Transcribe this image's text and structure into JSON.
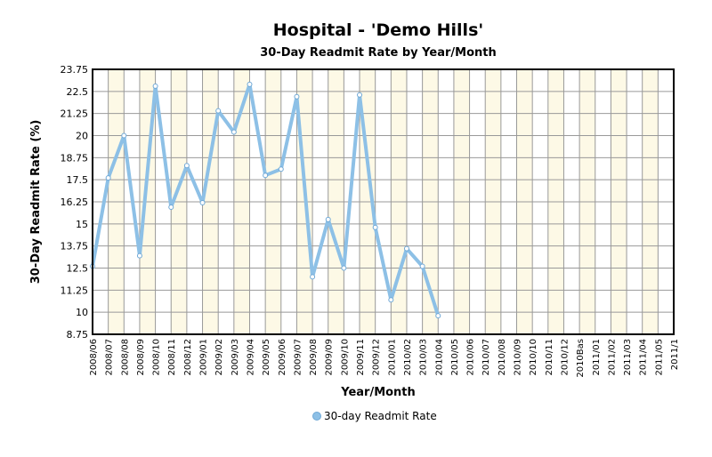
{
  "chart_data": {
    "type": "line",
    "title": "Hospital - 'Demo Hills'",
    "subtitle": "30-Day Readmit Rate by Year/Month",
    "x_label": "Year/Month",
    "y_label": "30-Day Readmit Rate (%)",
    "categories": [
      "2008/06",
      "2008/07",
      "2008/08",
      "2008/09",
      "2008/10",
      "2008/11",
      "2008/12",
      "2009/01",
      "2009/02",
      "2009/03",
      "2009/04",
      "2009/05",
      "2009/06",
      "2009/07",
      "2009/08",
      "2009/09",
      "2009/10",
      "2009/11",
      "2009/12",
      "2010/01",
      "2010/02",
      "2010/03",
      "2010/04",
      "2010/05",
      "2010/06",
      "2010/07",
      "2010/08",
      "2010/09",
      "2010/10",
      "2010/11",
      "2010/12",
      "2010Bas",
      "2011/01",
      "2011/02",
      "2011/03",
      "2011/04",
      "2011/05",
      "2011/1"
    ],
    "series": [
      {
        "name": "30-day Readmit Rate",
        "color": "#8dc0e6",
        "values": [
          12.6,
          17.6,
          20.0,
          13.2,
          22.8,
          15.95,
          18.3,
          16.2,
          21.4,
          20.2,
          22.9,
          17.75,
          18.1,
          22.2,
          12.0,
          15.25,
          12.5,
          22.3,
          14.8,
          10.7,
          13.6,
          12.6,
          9.8,
          null,
          null,
          null,
          null,
          null,
          null,
          null,
          null,
          null,
          null,
          null,
          null,
          null,
          null,
          null
        ]
      }
    ],
    "ylim": [
      8.75,
      23.75
    ],
    "yticks": [
      8.75,
      10,
      11.25,
      12.5,
      13.75,
      15,
      16.25,
      17.5,
      18.75,
      20,
      21.25,
      22.5,
      23.75
    ],
    "grid": true
  }
}
